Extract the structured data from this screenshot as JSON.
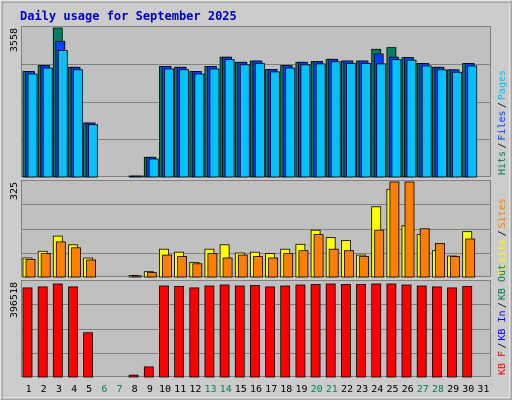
{
  "title": "Daily usage for September 2025",
  "colors": {
    "frame": "#CCCCCC",
    "panel": "#C0C0C0",
    "grid": "#808080",
    "title": "#0000C0",
    "hits": "#00805C",
    "files": "#0040FF",
    "pages": "#00C0FF",
    "visits": "#FFFF00",
    "sites": "#FF8000",
    "kbf": "#FF0000",
    "kbin": "#0000FF",
    "kbout": "#00805C",
    "weekday_text": "#000000",
    "weekend_text": "#00805C"
  },
  "chart_data": [
    {
      "type": "bar",
      "name": "hits-files-pages",
      "ymax_label": "3558",
      "ymax": 3558,
      "ylim": [
        0,
        3558
      ],
      "legend": [
        {
          "label": "Hits",
          "color": "#00805C"
        },
        {
          "label": "Files",
          "color": "#0040FF"
        },
        {
          "label": "Pages",
          "color": "#00C0FF"
        }
      ],
      "series": [
        {
          "name": "Hits",
          "values": [
            2520,
            2660,
            3558,
            2620,
            1290,
            0,
            0,
            10,
            470,
            2640,
            2620,
            2520,
            2640,
            2860,
            2740,
            2770,
            2570,
            2660,
            2740,
            2760,
            2810,
            2770,
            2770,
            3050,
            3090,
            2850,
            2710,
            2620,
            2560,
            2710,
            0
          ]
        },
        {
          "name": "Files",
          "values": [
            2520,
            2660,
            3240,
            2620,
            1290,
            0,
            0,
            10,
            470,
            2640,
            2620,
            2520,
            2640,
            2860,
            2740,
            2770,
            2570,
            2660,
            2740,
            2760,
            2810,
            2770,
            2770,
            2940,
            2860,
            2850,
            2710,
            2620,
            2560,
            2710,
            0
          ]
        },
        {
          "name": "Pages",
          "values": [
            2460,
            2600,
            3020,
            2560,
            1250,
            0,
            0,
            10,
            430,
            2580,
            2560,
            2460,
            2580,
            2800,
            2680,
            2710,
            2510,
            2600,
            2680,
            2700,
            2750,
            2710,
            2710,
            2700,
            2800,
            2790,
            2650,
            2560,
            2500,
            2650,
            0
          ]
        }
      ]
    },
    {
      "type": "bar",
      "name": "visits-sites",
      "ymax_label": "325",
      "ymax": 325,
      "ylim": [
        0,
        325
      ],
      "legend": [
        {
          "label": "Visits",
          "color": "#FFFF00"
        },
        {
          "label": "Sites",
          "color": "#FF8000"
        }
      ],
      "series": [
        {
          "name": "Visits",
          "values": [
            65,
            88,
            140,
            110,
            65,
            0,
            0,
            5,
            18,
            95,
            85,
            50,
            95,
            110,
            82,
            85,
            80,
            95,
            112,
            160,
            135,
            125,
            75,
            240,
            300,
            175,
            145,
            90,
            72,
            155,
            0
          ]
        },
        {
          "name": "Sites",
          "values": [
            60,
            80,
            120,
            100,
            58,
            0,
            0,
            4,
            15,
            75,
            70,
            45,
            80,
            65,
            75,
            70,
            65,
            80,
            90,
            145,
            95,
            90,
            70,
            160,
            325,
            325,
            165,
            115,
            70,
            130,
            0
          ]
        }
      ]
    },
    {
      "type": "bar",
      "name": "kbytes",
      "ymax_label": "396518",
      "ymax": 396518,
      "ylim": [
        0,
        396518
      ],
      "legend": [
        {
          "label": "KB F",
          "color": "#FF0000"
        },
        {
          "label": "KB In",
          "color": "#0000FF"
        },
        {
          "label": "KB Out",
          "color": "#00805C"
        }
      ],
      "series": [
        {
          "name": "KB F",
          "values": [
            372000,
            376000,
            388000,
            376000,
            185000,
            0,
            0,
            8000,
            42000,
            380000,
            378000,
            372000,
            380000,
            384000,
            380000,
            382000,
            376000,
            380000,
            384000,
            386000,
            388000,
            386000,
            386000,
            388000,
            388000,
            384000,
            380000,
            376000,
            372000,
            378000,
            0
          ]
        }
      ]
    }
  ],
  "x_labels": [
    "1",
    "2",
    "3",
    "4",
    "5",
    "6",
    "7",
    "8",
    "9",
    "10",
    "11",
    "12",
    "13",
    "14",
    "15",
    "16",
    "17",
    "18",
    "19",
    "20",
    "21",
    "22",
    "23",
    "24",
    "25",
    "26",
    "27",
    "28",
    "29",
    "30",
    "31"
  ],
  "weekend_days": [
    6,
    7,
    13,
    14,
    20,
    21,
    27,
    28
  ]
}
